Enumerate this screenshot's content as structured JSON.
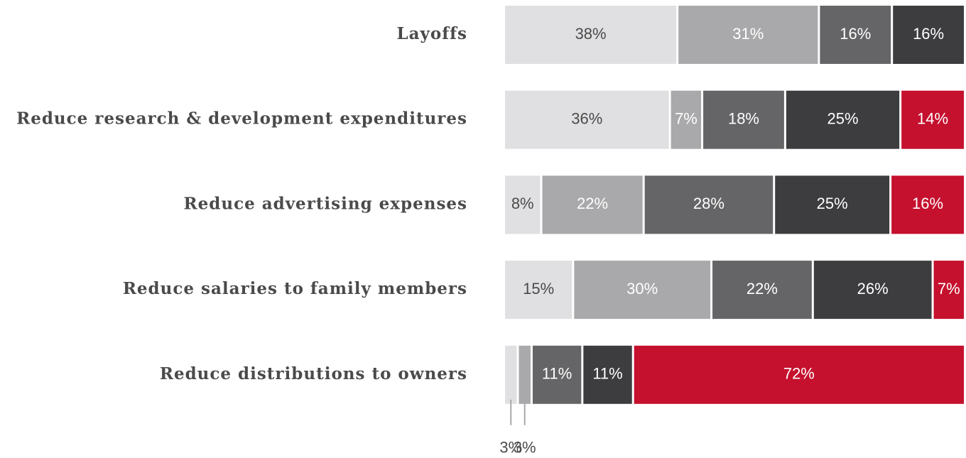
{
  "chart_data": {
    "type": "stacked-bar-horizontal",
    "categories": [
      "Layoffs",
      "Reduce research & development expenditures",
      "Reduce advertising expenses",
      "Reduce salaries to family members",
      "Reduce distributions to owners"
    ],
    "series": [
      {
        "color": "#e0e0e2",
        "values": [
          38,
          36,
          8,
          15,
          3
        ],
        "value_labels": [
          "38%",
          "36%",
          "8%",
          "15%",
          "3%"
        ]
      },
      {
        "color": "#a9a9ab",
        "values": [
          31,
          7,
          22,
          30,
          3
        ],
        "value_labels": [
          "31%",
          "7%",
          "22%",
          "30%",
          "3%"
        ]
      },
      {
        "color": "#656567",
        "values": [
          16,
          18,
          28,
          22,
          11
        ],
        "value_labels": [
          "16%",
          "18%",
          "28%",
          "22%",
          "11%"
        ]
      },
      {
        "color": "#3d3d3f",
        "values": [
          16,
          25,
          25,
          26,
          11
        ],
        "value_labels": [
          "16%",
          "25%",
          "25%",
          "26%",
          "11%"
        ]
      },
      {
        "color": "#c5102e",
        "values": [
          null,
          14,
          16,
          7,
          72
        ],
        "value_labels": [
          null,
          "14%",
          "16%",
          "7%",
          "72%"
        ]
      }
    ]
  }
}
